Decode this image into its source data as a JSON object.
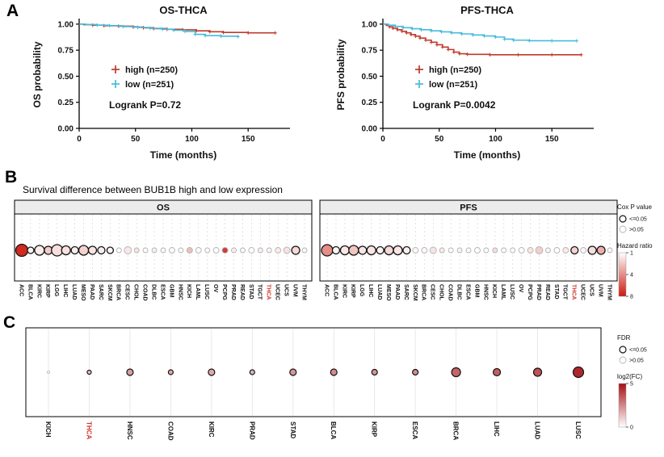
{
  "panels": {
    "a_label": "A",
    "b_label": "B",
    "c_label": "C",
    "b_title": "Survival  difference between BUB1B high and low expression",
    "highlight_category": "THCA",
    "highlight_color": "#d0342c"
  },
  "chart_data": [
    {
      "id": "km_os",
      "type": "line",
      "title": "OS-THCA",
      "xlabel": "Time (months)",
      "ylabel": "OS probability",
      "xlim": [
        0,
        185
      ],
      "ylim": [
        0,
        1.03
      ],
      "xticks": [
        0,
        50,
        100,
        150
      ],
      "yticks": [
        {
          "v": 0,
          "label": "0.00"
        },
        {
          "v": 0.25,
          "label": "0.25"
        },
        {
          "v": 0.5,
          "label": "0.50"
        },
        {
          "v": 0.75,
          "label": "0.75"
        },
        {
          "v": 1,
          "label": "1.00"
        }
      ],
      "annotation": "Logrank P=0.72",
      "legend_position": "inside",
      "grid": false,
      "series": [
        {
          "name": "high (n=250)",
          "color": "#bf3a2b",
          "points": [
            [
              0,
              1.0
            ],
            [
              4,
              0.995
            ],
            [
              12,
              0.99
            ],
            [
              22,
              0.985
            ],
            [
              35,
              0.98
            ],
            [
              48,
              0.972
            ],
            [
              57,
              0.965
            ],
            [
              66,
              0.957
            ],
            [
              78,
              0.95
            ],
            [
              92,
              0.945
            ],
            [
              104,
              0.936
            ],
            [
              116,
              0.927
            ],
            [
              128,
              0.92
            ],
            [
              150,
              0.916
            ],
            [
              174,
              0.916
            ]
          ]
        },
        {
          "name": "low  (n=251)",
          "color": "#45bcdd",
          "points": [
            [
              0,
              1.0
            ],
            [
              6,
              0.996
            ],
            [
              16,
              0.99
            ],
            [
              27,
              0.984
            ],
            [
              39,
              0.976
            ],
            [
              52,
              0.968
            ],
            [
              63,
              0.96
            ],
            [
              74,
              0.951
            ],
            [
              84,
              0.941
            ],
            [
              94,
              0.93
            ],
            [
              103,
              0.902
            ],
            [
              112,
              0.89
            ],
            [
              126,
              0.884
            ],
            [
              141,
              0.88
            ]
          ]
        }
      ]
    },
    {
      "id": "km_pfs",
      "type": "line",
      "title": "PFS-THCA",
      "xlabel": "Time (months)",
      "ylabel": "PFS probability",
      "xlim": [
        0,
        185
      ],
      "ylim": [
        0,
        1.03
      ],
      "xticks": [
        0,
        50,
        100,
        150
      ],
      "yticks": [
        {
          "v": 0,
          "label": "0.00"
        },
        {
          "v": 0.25,
          "label": "0.25"
        },
        {
          "v": 0.5,
          "label": "0.50"
        },
        {
          "v": 0.75,
          "label": "0.75"
        },
        {
          "v": 1,
          "label": "1.00"
        }
      ],
      "annotation": "Logrank P=0.0042",
      "legend_position": "inside",
      "grid": false,
      "series": [
        {
          "name": "high (n=250)",
          "color": "#bf3a2b",
          "points": [
            [
              0,
              1.0
            ],
            [
              3,
              0.988
            ],
            [
              6,
              0.974
            ],
            [
              9,
              0.96
            ],
            [
              13,
              0.946
            ],
            [
              17,
              0.931
            ],
            [
              21,
              0.916
            ],
            [
              25,
              0.9
            ],
            [
              29,
              0.884
            ],
            [
              33,
              0.866
            ],
            [
              38,
              0.846
            ],
            [
              43,
              0.826
            ],
            [
              48,
              0.802
            ],
            [
              53,
              0.78
            ],
            [
              58,
              0.756
            ],
            [
              63,
              0.731
            ],
            [
              68,
              0.716
            ],
            [
              75,
              0.71
            ],
            [
              95,
              0.706
            ],
            [
              120,
              0.706
            ],
            [
              150,
              0.706
            ],
            [
              176,
              0.706
            ]
          ]
        },
        {
          "name": "low  (n=251)",
          "color": "#45bcdd",
          "points": [
            [
              0,
              1.0
            ],
            [
              5,
              0.99
            ],
            [
              11,
              0.978
            ],
            [
              18,
              0.966
            ],
            [
              26,
              0.956
            ],
            [
              34,
              0.946
            ],
            [
              43,
              0.936
            ],
            [
              52,
              0.926
            ],
            [
              61,
              0.916
            ],
            [
              70,
              0.906
            ],
            [
              80,
              0.896
            ],
            [
              90,
              0.886
            ],
            [
              100,
              0.876
            ],
            [
              108,
              0.856
            ],
            [
              116,
              0.846
            ],
            [
              130,
              0.841
            ],
            [
              150,
              0.84
            ],
            [
              172,
              0.84
            ]
          ]
        }
      ]
    },
    {
      "id": "bubble_os",
      "type": "scatter",
      "facet_label": "OS",
      "value_name": "hazard_ratio",
      "value_range": [
        1,
        8
      ],
      "color_to": "#cc1a10",
      "categories": [
        "ACC",
        "BLCA",
        "KIRC",
        "KIRP",
        "LGG",
        "LIHC",
        "LUAD",
        "MESO",
        "PAAD",
        "SARC",
        "SKCM",
        "BRCA",
        "CESC",
        "CHOL",
        "COAD",
        "DLBC",
        "ESCA",
        "GBM",
        "HNSC",
        "KICH",
        "LAML",
        "LUSC",
        "OV",
        "PCPG",
        "PRAD",
        "READ",
        "STAD",
        "TGCT",
        "THCA",
        "UCEC",
        "UCS",
        "UVM",
        "THYM"
      ],
      "points": [
        {
          "hr": 7.5,
          "sig": true,
          "r": 7.5
        },
        {
          "hr": 1.4,
          "sig": true,
          "r": 4
        },
        {
          "hr": 1.6,
          "sig": true,
          "r": 6
        },
        {
          "hr": 2.6,
          "sig": true,
          "r": 5
        },
        {
          "hr": 2.0,
          "sig": true,
          "r": 7
        },
        {
          "hr": 1.9,
          "sig": true,
          "r": 5.5
        },
        {
          "hr": 1.5,
          "sig": true,
          "r": 4.5
        },
        {
          "hr": 2.4,
          "sig": true,
          "r": 6
        },
        {
          "hr": 1.8,
          "sig": true,
          "r": 5
        },
        {
          "hr": 1.6,
          "sig": true,
          "r": 4.5
        },
        {
          "hr": 1.3,
          "sig": true,
          "r": 4
        },
        {
          "hr": 1.1,
          "sig": false,
          "r": 3
        },
        {
          "hr": 1.7,
          "sig": false,
          "r": 4.5
        },
        {
          "hr": 1.8,
          "sig": false,
          "r": 3
        },
        {
          "hr": 1.1,
          "sig": false,
          "r": 3
        },
        {
          "hr": 1.5,
          "sig": false,
          "r": 3
        },
        {
          "hr": 1.2,
          "sig": false,
          "r": 3
        },
        {
          "hr": 1.2,
          "sig": false,
          "r": 3.5
        },
        {
          "hr": 1.1,
          "sig": false,
          "r": 3
        },
        {
          "hr": 3.0,
          "sig": false,
          "r": 3.5
        },
        {
          "hr": 1.2,
          "sig": false,
          "r": 3.5
        },
        {
          "hr": 1.0,
          "sig": false,
          "r": 3
        },
        {
          "hr": 1.1,
          "sig": false,
          "r": 3.5
        },
        {
          "hr": 7.0,
          "sig": false,
          "r": 3.5
        },
        {
          "hr": 1.5,
          "sig": false,
          "r": 3
        },
        {
          "hr": 1.2,
          "sig": false,
          "r": 3
        },
        {
          "hr": 1.0,
          "sig": false,
          "r": 3.5
        },
        {
          "hr": 1.5,
          "sig": false,
          "r": 3
        },
        {
          "hr": 1.3,
          "sig": false,
          "r": 3
        },
        {
          "hr": 1.6,
          "sig": false,
          "r": 3.5
        },
        {
          "hr": 1.9,
          "sig": false,
          "r": 4
        },
        {
          "hr": 2.2,
          "sig": true,
          "r": 5
        },
        {
          "hr": 1.2,
          "sig": false,
          "r": 3
        }
      ]
    },
    {
      "id": "bubble_pfs",
      "type": "scatter",
      "facet_label": "PFS",
      "value_name": "hazard_ratio",
      "value_range": [
        1,
        8
      ],
      "color_to": "#cc1a10",
      "categories": [
        "ACC",
        "BLCA",
        "KIRC",
        "KIRP",
        "LGG",
        "LIHC",
        "LUAD",
        "MESO",
        "PAAD",
        "SARC",
        "SKCM",
        "BRCA",
        "CESC",
        "CHOL",
        "COAD",
        "DLBC",
        "ESCA",
        "GBM",
        "HNSC",
        "KICH",
        "LAML",
        "LUSC",
        "OV",
        "PCPG",
        "PRAD",
        "READ",
        "STAD",
        "TGCT",
        "THCA",
        "UCEC",
        "UCS",
        "UVM",
        "THYM"
      ],
      "points": [
        {
          "hr": 4.5,
          "sig": true,
          "r": 7
        },
        {
          "hr": 1.3,
          "sig": true,
          "r": 4.5
        },
        {
          "hr": 1.7,
          "sig": true,
          "r": 5.5
        },
        {
          "hr": 2.8,
          "sig": true,
          "r": 6
        },
        {
          "hr": 1.8,
          "sig": true,
          "r": 5
        },
        {
          "hr": 1.8,
          "sig": true,
          "r": 5.5
        },
        {
          "hr": 1.4,
          "sig": true,
          "r": 4.5
        },
        {
          "hr": 2.2,
          "sig": true,
          "r": 5.5
        },
        {
          "hr": 1.8,
          "sig": true,
          "r": 5.5
        },
        {
          "hr": 1.5,
          "sig": true,
          "r": 4.5
        },
        {
          "hr": 1.2,
          "sig": false,
          "r": 3.5
        },
        {
          "hr": 1.2,
          "sig": false,
          "r": 3.5
        },
        {
          "hr": 1.8,
          "sig": false,
          "r": 4
        },
        {
          "hr": 1.6,
          "sig": false,
          "r": 3
        },
        {
          "hr": 1.1,
          "sig": false,
          "r": 3
        },
        {
          "hr": 1.4,
          "sig": false,
          "r": 3
        },
        {
          "hr": 1.1,
          "sig": false,
          "r": 3
        },
        {
          "hr": 1.1,
          "sig": false,
          "r": 3.5
        },
        {
          "hr": 1.1,
          "sig": false,
          "r": 3
        },
        {
          "hr": 2.0,
          "sig": false,
          "r": 3
        },
        {
          "hr": 1.0,
          "sig": false,
          "r": 3
        },
        {
          "hr": 1.0,
          "sig": false,
          "r": 3
        },
        {
          "hr": 1.1,
          "sig": false,
          "r": 3.5
        },
        {
          "hr": 1.8,
          "sig": false,
          "r": 3.5
        },
        {
          "hr": 2.5,
          "sig": false,
          "r": 4.5
        },
        {
          "hr": 1.3,
          "sig": false,
          "r": 3
        },
        {
          "hr": 1.1,
          "sig": false,
          "r": 3.5
        },
        {
          "hr": 1.6,
          "sig": false,
          "r": 3.5
        },
        {
          "hr": 2.4,
          "sig": true,
          "r": 4.5
        },
        {
          "hr": 1.3,
          "sig": false,
          "r": 3.5
        },
        {
          "hr": 2.0,
          "sig": true,
          "r": 5
        },
        {
          "hr": 3.5,
          "sig": true,
          "r": 5
        },
        {
          "hr": 1.3,
          "sig": false,
          "r": 3
        }
      ]
    },
    {
      "id": "bubble_fc",
      "type": "scatter",
      "value_name": "log2FC",
      "value_range": [
        0,
        5
      ],
      "color_to": "#a50f15",
      "categories": [
        "KICH",
        "THCA",
        "HNSC",
        "COAD",
        "KIRC",
        "PRAD",
        "STAD",
        "BLCA",
        "KIRP",
        "ESCA",
        "BRCA",
        "LIHC",
        "LUAD",
        "LUSC"
      ],
      "points": [
        {
          "fc": 0.2,
          "sig": false,
          "r": 1.5
        },
        {
          "fc": 1.2,
          "sig": true,
          "r": 2.5
        },
        {
          "fc": 2.0,
          "sig": true,
          "r": 4
        },
        {
          "fc": 1.8,
          "sig": true,
          "r": 3
        },
        {
          "fc": 1.8,
          "sig": true,
          "r": 4
        },
        {
          "fc": 1.6,
          "sig": true,
          "r": 3
        },
        {
          "fc": 2.2,
          "sig": true,
          "r": 4
        },
        {
          "fc": 2.4,
          "sig": true,
          "r": 4
        },
        {
          "fc": 2.2,
          "sig": true,
          "r": 3.5
        },
        {
          "fc": 2.4,
          "sig": true,
          "r": 3.5
        },
        {
          "fc": 3.2,
          "sig": true,
          "r": 5.5
        },
        {
          "fc": 3.4,
          "sig": true,
          "r": 4.5
        },
        {
          "fc": 3.6,
          "sig": true,
          "r": 5
        },
        {
          "fc": 4.5,
          "sig": true,
          "r": 6.5
        }
      ]
    }
  ],
  "legend_b": {
    "p_title": "Cox P value",
    "p_items": [
      {
        "label": "<=0.05",
        "sig": true
      },
      {
        "label": ">0.05",
        "sig": false
      }
    ],
    "grad_title": "Hazard ratio",
    "grad_from": "#ffffff",
    "grad_to": "#cc1a10",
    "grad_ticks": [
      {
        "label": "1",
        "t": 0
      },
      {
        "label": "4",
        "t": 0.5
      },
      {
        "label": "8",
        "t": 1
      }
    ]
  },
  "legend_c": {
    "p_title": "FDR",
    "p_items": [
      {
        "label": "<=0.05",
        "sig": true
      },
      {
        "label": ">0.05",
        "sig": false
      }
    ],
    "grad_title": "log2(FC)",
    "grad_from": "#a50f15",
    "grad_to": "#ffffff",
    "grad_ticks": [
      {
        "label": "5",
        "t": 0
      },
      {
        "label": "0",
        "t": 1
      }
    ]
  }
}
